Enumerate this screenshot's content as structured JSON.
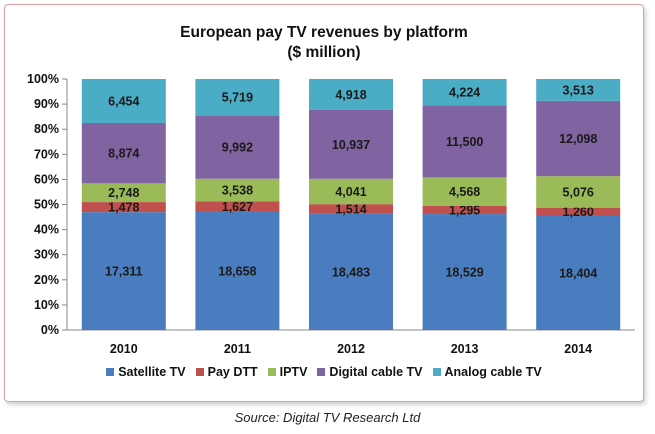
{
  "chart_data": {
    "type": "bar",
    "stacked": "percent",
    "title_line1": "European pay TV revenues by platform",
    "title_line2": "($ million)",
    "categories": [
      "2010",
      "2011",
      "2012",
      "2013",
      "2014"
    ],
    "y_ticks": [
      "0%",
      "10%",
      "20%",
      "30%",
      "40%",
      "50%",
      "60%",
      "70%",
      "80%",
      "90%",
      "100%"
    ],
    "ylim": [
      0,
      100
    ],
    "legend_position": "bottom",
    "series": [
      {
        "name": "Satellite TV",
        "color": "#4a7dbf",
        "values": [
          17311,
          18658,
          18483,
          18529,
          18404
        ],
        "labels": [
          "17,311",
          "18,658",
          "18,483",
          "18,529",
          "18,404"
        ]
      },
      {
        "name": "Pay DTT",
        "color": "#c0504d",
        "values": [
          1478,
          1627,
          1514,
          1295,
          1260
        ],
        "labels": [
          "1,478",
          "1,627",
          "1,514",
          "1,295",
          "1,260"
        ]
      },
      {
        "name": "IPTV",
        "color": "#9bbb59",
        "values": [
          2748,
          3538,
          4041,
          4568,
          5076
        ],
        "labels": [
          "2,748",
          "3,538",
          "4,041",
          "4,568",
          "5,076"
        ]
      },
      {
        "name": "Digital cable TV",
        "color": "#8064a2",
        "values": [
          8874,
          9992,
          10937,
          11500,
          12098
        ],
        "labels": [
          "8,874",
          "9,992",
          "10,937",
          "11,500",
          "12,098"
        ]
      },
      {
        "name": "Analog cable TV",
        "color": "#4bacc6",
        "values": [
          6454,
          5719,
          4918,
          4224,
          3513
        ],
        "labels": [
          "6,454",
          "5,719",
          "4,918",
          "4,224",
          "3,513"
        ]
      }
    ]
  },
  "source": "Source: Digital TV Research Ltd"
}
